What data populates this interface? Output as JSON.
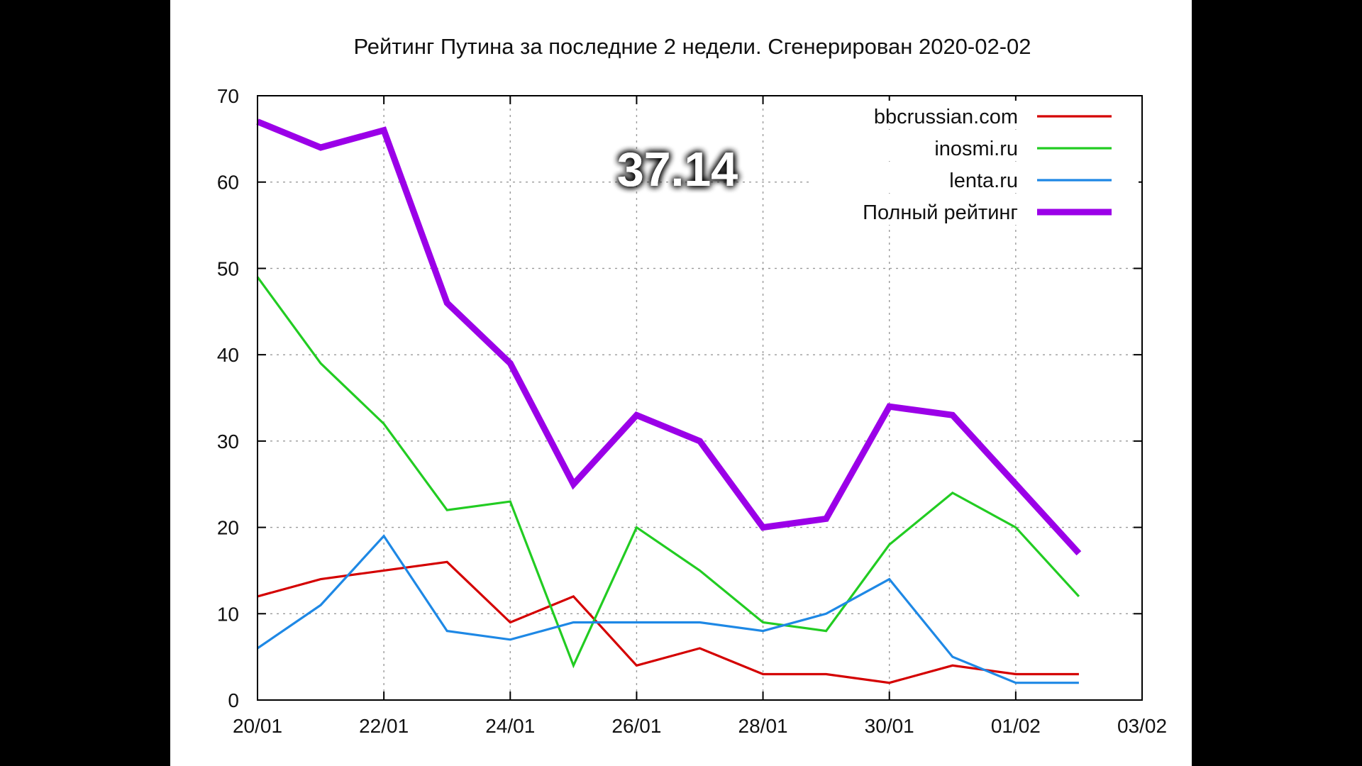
{
  "chart_data": {
    "type": "line",
    "title": "Рейтинг Путина за последние 2 недели. Сгенерирован 2020-02-02",
    "highlight_value": "37.14",
    "xlabel": "",
    "ylabel": "",
    "xlim": [
      "20/01",
      "03/02"
    ],
    "ylim": [
      0,
      70
    ],
    "yticks": [
      0,
      10,
      20,
      30,
      40,
      50,
      60,
      70
    ],
    "xticks": [
      "20/01",
      "22/01",
      "24/01",
      "26/01",
      "28/01",
      "30/01",
      "01/02",
      "03/02"
    ],
    "x": [
      "20/01",
      "21/01",
      "22/01",
      "23/01",
      "24/01",
      "25/01",
      "26/01",
      "27/01",
      "28/01",
      "29/01",
      "30/01",
      "31/01",
      "01/02",
      "02/02"
    ],
    "grid": true,
    "legend_position": "top-right",
    "series": [
      {
        "name": "bbcrussian.com",
        "color": "#d40000",
        "width": "thin",
        "values": [
          12,
          14,
          15,
          16,
          9,
          12,
          4,
          6,
          3,
          3,
          2,
          4,
          3,
          3
        ]
      },
      {
        "name": "inosmi.ru",
        "color": "#22cc22",
        "width": "thin",
        "values": [
          49,
          39,
          32,
          22,
          23,
          4,
          20,
          15,
          9,
          8,
          18,
          24,
          20,
          12
        ]
      },
      {
        "name": "lenta.ru",
        "color": "#1e88e5",
        "width": "thin",
        "values": [
          6,
          11,
          19,
          8,
          7,
          9,
          9,
          9,
          8,
          10,
          14,
          5,
          2,
          2
        ]
      },
      {
        "name": "Полный рейтинг",
        "color": "#9b00e8",
        "width": "thick",
        "values": [
          67,
          64,
          66,
          46,
          39,
          25,
          33,
          30,
          20,
          21,
          34,
          33,
          25,
          17
        ]
      }
    ]
  }
}
